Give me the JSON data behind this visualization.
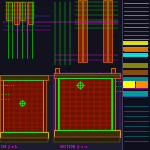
{
  "bg": "#1c1c2e",
  "bg_main": "#14141f",
  "red_fill": "#7a1500",
  "red_grid": "#cc2200",
  "green": "#00ff00",
  "magenta": "#ff00ff",
  "yellow": "#ffff00",
  "cyan": "#00ffff",
  "orange": "#ff8800",
  "white": "#ffffff",
  "blue_line": "#4444ff",
  "pink": "#ff88ff",
  "right_bg": "#0e0e1c",
  "section_cc": "SECTION @ c-c",
  "section_ab": "ION @ a-b"
}
